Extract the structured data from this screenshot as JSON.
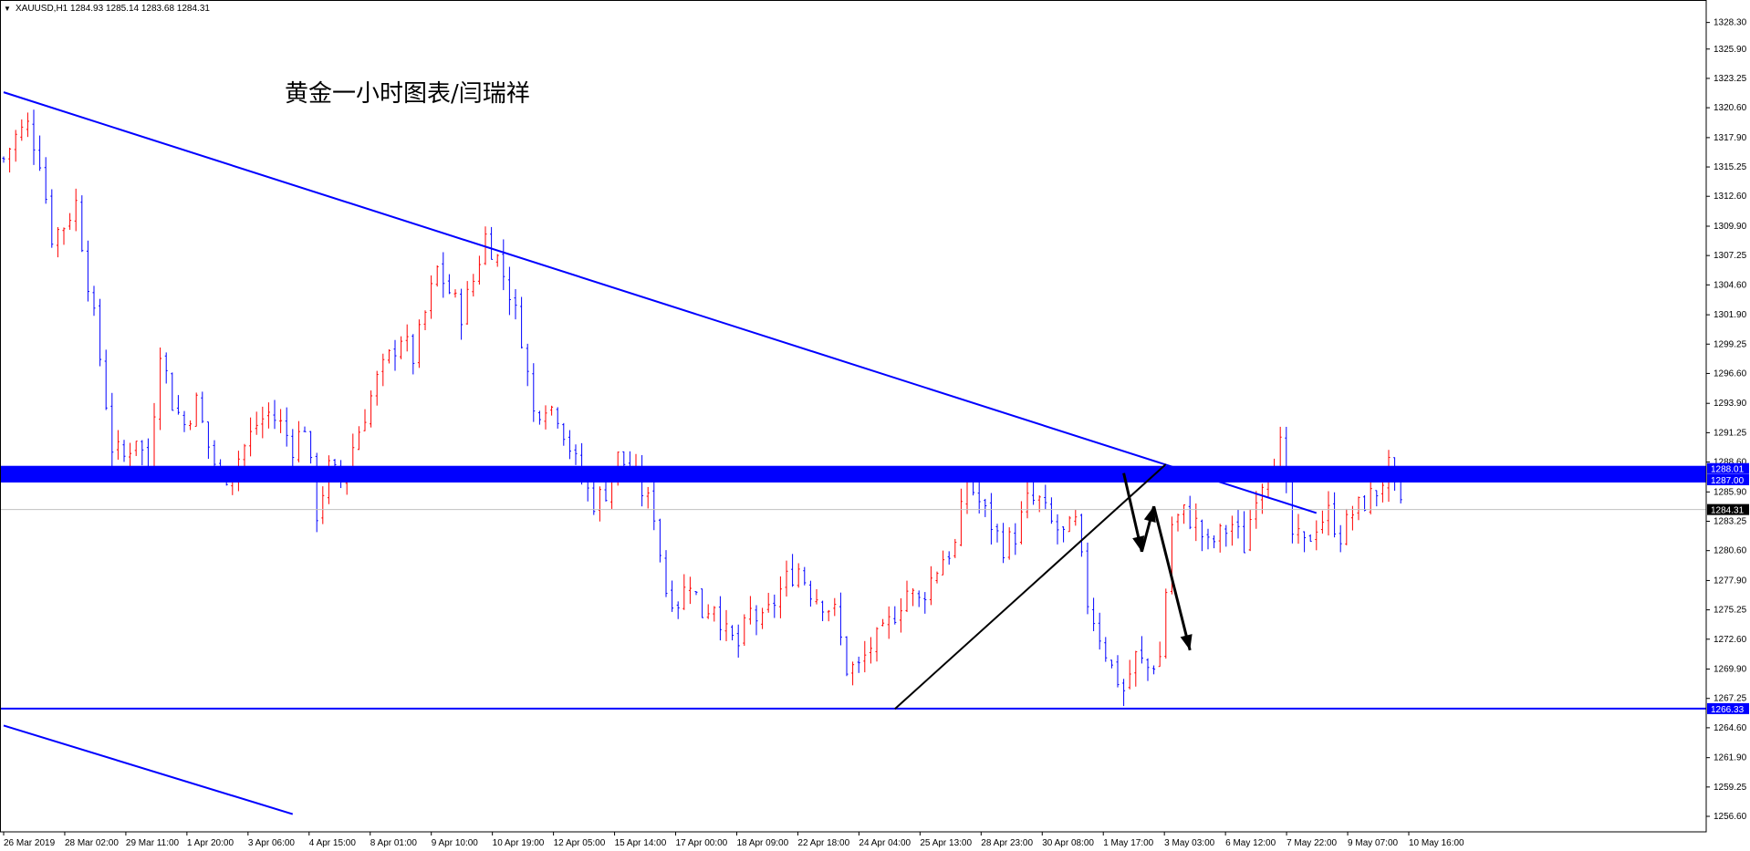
{
  "header": {
    "symbol_line": "XAUUSD,H1  1284.93 1285.14 1283.68 1284.31",
    "dropdown_glyph": "▼"
  },
  "annotation_text": "黄金一小时图表/闫瑞祥",
  "colors": {
    "bull": "#ff0000",
    "bear": "#0000ff",
    "trendline": "#0000ff",
    "support_band": "#0000ff",
    "arrow": "#000000",
    "axis": "#000000",
    "current_line": "#c0c0c0"
  },
  "chart_data": {
    "type": "candlestick",
    "title": "",
    "xlabel": "",
    "ylabel": "",
    "ylim": [
      1255.2,
      1330.0
    ],
    "x_tick_labels": [
      "26 Mar 2019",
      "28 Mar 02:00",
      "29 Mar 11:00",
      "1 Apr 20:00",
      "3 Apr 06:00",
      "4 Apr 15:00",
      "8 Apr 01:00",
      "9 Apr 10:00",
      "10 Apr 19:00",
      "12 Apr 05:00",
      "15 Apr 14:00",
      "17 Apr 00:00",
      "18 Apr 09:00",
      "22 Apr 18:00",
      "24 Apr 04:00",
      "25 Apr 13:00",
      "28 Apr 23:00",
      "30 Apr 08:00",
      "1 May 17:00",
      "3 May 03:00",
      "6 May 12:00",
      "7 May 22:00",
      "9 May 07:00",
      "10 May 16:00"
    ],
    "y_ticks": [
      1328.3,
      1325.9,
      1323.25,
      1320.6,
      1317.9,
      1315.25,
      1312.6,
      1309.9,
      1307.25,
      1304.6,
      1301.9,
      1299.25,
      1296.6,
      1293.9,
      1291.25,
      1288.6,
      1285.9,
      1283.25,
      1280.6,
      1277.9,
      1275.25,
      1272.6,
      1269.9,
      1267.25,
      1264.6,
      1261.9,
      1259.25,
      1256.6
    ],
    "price_anchors": [
      [
        0,
        1316
      ],
      [
        2,
        1318
      ],
      [
        4,
        1319
      ],
      [
        6,
        1316
      ],
      [
        8,
        1309
      ],
      [
        10,
        1310
      ],
      [
        12,
        1312
      ],
      [
        14,
        1305
      ],
      [
        16,
        1298
      ],
      [
        18,
        1290
      ],
      [
        20,
        1289
      ],
      [
        22,
        1291
      ],
      [
        24,
        1288
      ],
      [
        26,
        1299
      ],
      [
        28,
        1294
      ],
      [
        30,
        1292
      ],
      [
        32,
        1294
      ],
      [
        34,
        1290
      ],
      [
        36,
        1287
      ],
      [
        38,
        1288
      ],
      [
        40,
        1290
      ],
      [
        42,
        1292
      ],
      [
        44,
        1293
      ],
      [
        46,
        1292
      ],
      [
        48,
        1290
      ],
      [
        50,
        1292
      ],
      [
        52,
        1284
      ],
      [
        54,
        1288
      ],
      [
        56,
        1287
      ],
      [
        58,
        1290
      ],
      [
        60,
        1293
      ],
      [
        62,
        1296
      ],
      [
        64,
        1298
      ],
      [
        66,
        1300
      ],
      [
        68,
        1298
      ],
      [
        70,
        1302
      ],
      [
        72,
        1306
      ],
      [
        74,
        1304
      ],
      [
        76,
        1302
      ],
      [
        78,
        1305
      ],
      [
        80,
        1309
      ],
      [
        82,
        1307
      ],
      [
        84,
        1304
      ],
      [
        86,
        1300
      ],
      [
        88,
        1293
      ],
      [
        90,
        1294
      ],
      [
        92,
        1293
      ],
      [
        94,
        1290
      ],
      [
        96,
        1287
      ],
      [
        98,
        1285
      ],
      [
        100,
        1286
      ],
      [
        102,
        1289
      ],
      [
        104,
        1288
      ],
      [
        106,
        1286
      ],
      [
        108,
        1284
      ],
      [
        110,
        1277
      ],
      [
        112,
        1276
      ],
      [
        114,
        1278
      ],
      [
        116,
        1275
      ],
      [
        118,
        1276
      ],
      [
        120,
        1273
      ],
      [
        122,
        1272
      ],
      [
        124,
        1275
      ],
      [
        126,
        1274
      ],
      [
        128,
        1276
      ],
      [
        130,
        1278
      ],
      [
        132,
        1279
      ],
      [
        134,
        1277
      ],
      [
        136,
        1276
      ],
      [
        138,
        1275
      ],
      [
        140,
        1270
      ],
      [
        142,
        1270
      ],
      [
        144,
        1272
      ],
      [
        146,
        1273
      ],
      [
        148,
        1275
      ],
      [
        150,
        1277
      ],
      [
        152,
        1276
      ],
      [
        154,
        1278
      ],
      [
        156,
        1280
      ],
      [
        158,
        1281
      ],
      [
        160,
        1287
      ],
      [
        162,
        1285
      ],
      [
        164,
        1283
      ],
      [
        166,
        1281
      ],
      [
        168,
        1282
      ],
      [
        170,
        1285
      ],
      [
        172,
        1285
      ],
      [
        174,
        1283
      ],
      [
        176,
        1282
      ],
      [
        178,
        1283
      ],
      [
        180,
        1276
      ],
      [
        182,
        1273
      ],
      [
        184,
        1270
      ],
      [
        186,
        1268
      ],
      [
        188,
        1271
      ],
      [
        190,
        1270
      ],
      [
        192,
        1271
      ],
      [
        194,
        1283
      ],
      [
        196,
        1284
      ],
      [
        198,
        1283
      ],
      [
        200,
        1281
      ],
      [
        202,
        1282
      ],
      [
        204,
        1283
      ],
      [
        206,
        1281
      ],
      [
        208,
        1286
      ],
      [
        210,
        1288
      ],
      [
        212,
        1290
      ],
      [
        214,
        1282
      ],
      [
        216,
        1281
      ],
      [
        218,
        1283
      ],
      [
        220,
        1284
      ],
      [
        222,
        1282
      ],
      [
        224,
        1284
      ],
      [
        226,
        1285
      ],
      [
        228,
        1286
      ],
      [
        230,
        1288
      ],
      [
        232,
        1284.3
      ]
    ],
    "bar_count": 233,
    "current_price": 1284.31,
    "price_tags": [
      {
        "label": "1288.01",
        "value": 1288.01
      },
      {
        "label": "1287.00",
        "value": 1287.0
      },
      {
        "label": "1284.31",
        "value": 1284.31
      },
      {
        "label": "1266.33",
        "value": 1266.33
      }
    ],
    "support_band": [
      1287.0,
      1288.01
    ],
    "support_level": 1266.33,
    "trendlines": [
      {
        "name": "descending-resistance",
        "from": [
          0,
          1322.0
        ],
        "to": [
          218,
          1284.0
        ]
      },
      {
        "name": "lower-channel",
        "from": [
          0,
          1264.8
        ],
        "to": [
          48,
          1256.8
        ]
      },
      {
        "name": "ascending-support",
        "from": [
          148,
          1266.3
        ],
        "to": [
          193,
          1288.4
        ]
      }
    ],
    "arrows": [
      {
        "from": [
          186,
          1287.6
        ],
        "to": [
          189,
          1280.5
        ]
      },
      {
        "from": [
          189,
          1280.5
        ],
        "to": [
          191,
          1284.6
        ]
      },
      {
        "from": [
          191,
          1284.6
        ],
        "to": [
          197,
          1271.6
        ]
      }
    ]
  }
}
